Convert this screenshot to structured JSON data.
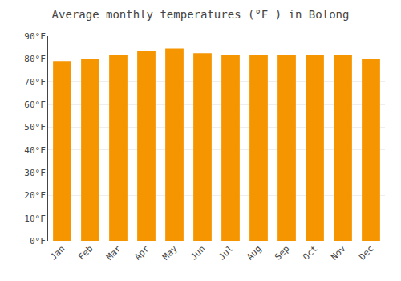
{
  "chart_data": {
    "type": "bar",
    "title": "Average monthly temperatures (°F ) in Bolong",
    "categories": [
      "Jan",
      "Feb",
      "Mar",
      "Apr",
      "May",
      "Jun",
      "Jul",
      "Aug",
      "Sep",
      "Oct",
      "Nov",
      "Dec"
    ],
    "values": [
      79,
      80,
      81.5,
      83.5,
      84.5,
      82.5,
      81.5,
      81.5,
      81.5,
      81.5,
      81.5,
      80
    ],
    "color": "#F59500",
    "ylim": [
      0,
      90
    ],
    "yticks": [
      {
        "value": 0,
        "label": "0°F"
      },
      {
        "value": 10,
        "label": "10°F"
      },
      {
        "value": 20,
        "label": "20°F"
      },
      {
        "value": 30,
        "label": "30°F"
      },
      {
        "value": 40,
        "label": "40°F"
      },
      {
        "value": 50,
        "label": "50°F"
      },
      {
        "value": 60,
        "label": "60°F"
      },
      {
        "value": 70,
        "label": "70°F"
      },
      {
        "value": 80,
        "label": "80°F"
      },
      {
        "value": 90,
        "label": "90°F"
      }
    ],
    "grid": true
  }
}
